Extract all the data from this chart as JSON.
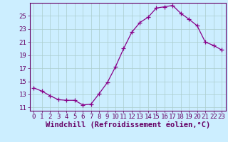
{
  "x": [
    0,
    1,
    2,
    3,
    4,
    5,
    6,
    7,
    8,
    9,
    10,
    11,
    12,
    13,
    14,
    15,
    16,
    17,
    18,
    19,
    20,
    21,
    22,
    23
  ],
  "y": [
    14.0,
    13.5,
    12.8,
    12.2,
    12.1,
    12.1,
    11.4,
    11.5,
    13.1,
    14.8,
    17.2,
    20.0,
    22.5,
    24.0,
    24.8,
    26.2,
    26.4,
    26.6,
    25.4,
    24.5,
    23.5,
    21.0,
    20.5,
    19.8
  ],
  "line_color": "#880088",
  "marker": "+",
  "marker_size": 4,
  "bg_color": "#cceeff",
  "grid_color": "#aacccc",
  "axis_color": "#660066",
  "tick_color": "#660066",
  "xlabel": "Windchill (Refroidissement éolien,°C)",
  "xlim": [
    -0.5,
    23.5
  ],
  "ylim": [
    10.5,
    27.0
  ],
  "yticks": [
    11,
    13,
    15,
    17,
    19,
    21,
    23,
    25
  ],
  "xticks": [
    0,
    1,
    2,
    3,
    4,
    5,
    6,
    7,
    8,
    9,
    10,
    11,
    12,
    13,
    14,
    15,
    16,
    17,
    18,
    19,
    20,
    21,
    22,
    23
  ],
  "tick_font_size": 6.5,
  "xlabel_font_size": 7.5
}
